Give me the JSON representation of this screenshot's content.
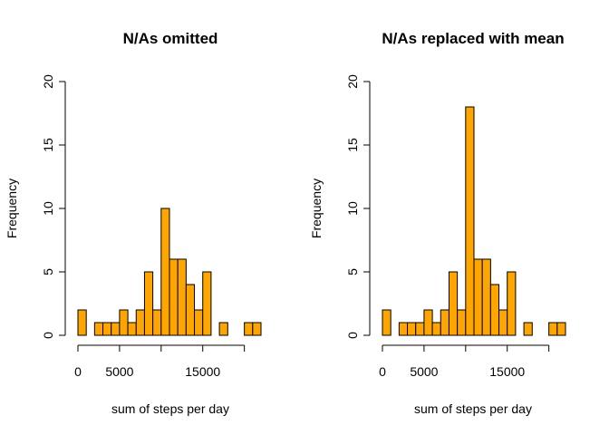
{
  "colors": {
    "bar_fill": "#FFA500",
    "bar_stroke": "#000000",
    "background": "#FFFFFF"
  },
  "chart_data": [
    {
      "type": "bar",
      "title": "N/As omitted",
      "xlabel": "sum of steps per day",
      "ylabel": "Frequency",
      "bin_width": 1000,
      "bin_start": 0,
      "x_ticks": [
        0,
        5000,
        10000,
        15000,
        20000
      ],
      "x_tick_labels": [
        "0",
        "5000",
        "",
        "15000",
        ""
      ],
      "y_ticks": [
        0,
        5,
        10,
        15,
        20
      ],
      "ylim": [
        0,
        20
      ],
      "values": [
        2,
        0,
        1,
        1,
        1,
        2,
        1,
        2,
        5,
        2,
        10,
        6,
        6,
        4,
        2,
        5,
        0,
        1,
        0,
        0,
        1,
        1
      ]
    },
    {
      "type": "bar",
      "title": "N/As replaced with mean",
      "xlabel": "sum of steps per day",
      "ylabel": "Frequency",
      "bin_width": 1000,
      "bin_start": 0,
      "x_ticks": [
        0,
        5000,
        10000,
        15000,
        20000
      ],
      "x_tick_labels": [
        "0",
        "5000",
        "",
        "15000",
        ""
      ],
      "y_ticks": [
        0,
        5,
        10,
        15,
        20
      ],
      "ylim": [
        0,
        20
      ],
      "values": [
        2,
        0,
        1,
        1,
        1,
        2,
        1,
        2,
        5,
        2,
        18,
        6,
        6,
        4,
        2,
        5,
        0,
        1,
        0,
        0,
        1,
        1
      ]
    }
  ]
}
